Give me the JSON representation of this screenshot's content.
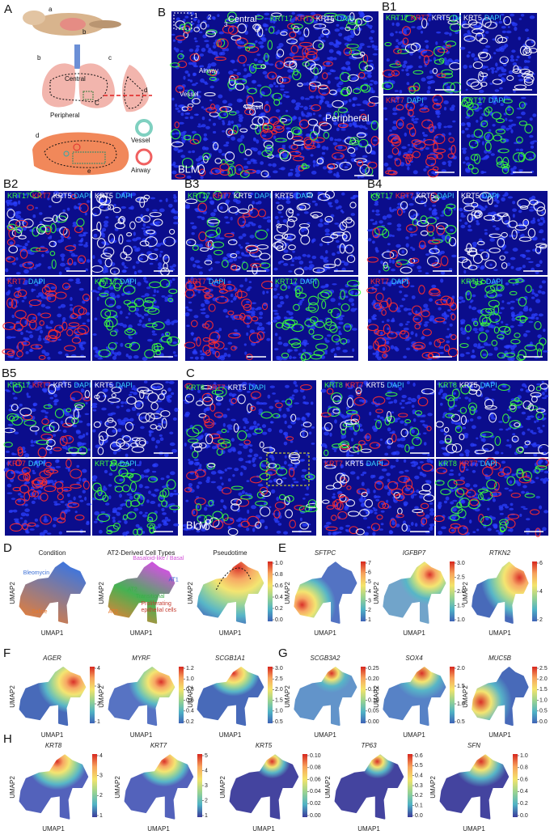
{
  "stain_colors": {
    "KRT17": "#3cff3c",
    "KRT7": "#ff2e2e",
    "KRT5": "#ffffff",
    "DAPI": "#38d3ff",
    "KRT8": "#3cff3c"
  },
  "panel_A": {
    "label": "A",
    "labels": [
      "a",
      "b",
      "b",
      "c",
      "C",
      "d",
      "d",
      "e",
      "Central",
      "Peripheral",
      "Vessel",
      "Airway"
    ]
  },
  "panel_B": {
    "label": "B",
    "stains": [
      "KRT17",
      "KRT7",
      "KRT5",
      "DAPI"
    ],
    "labels": [
      "Central",
      "Airway",
      "Vessel",
      "Vessel",
      "Peripheral",
      "BLM",
      "1",
      "2",
      "3"
    ]
  },
  "panel_B1": {
    "label": "B1",
    "images": [
      [
        "KRT17",
        "KRT7",
        "KRT5",
        "DAPI"
      ],
      [
        "KRT5",
        "DAPI"
      ],
      [
        "KRT7",
        "DAPI"
      ],
      [
        "KRT17",
        "DAPI"
      ]
    ]
  },
  "panel_B2": {
    "label": "B2",
    "images": [
      [
        "KRT17",
        "KRT7",
        "KRT5",
        "DAPI"
      ],
      [
        "KRT5",
        "DAPI"
      ],
      [
        "KRT7",
        "DAPI"
      ],
      [
        "KRT17",
        "DAPI"
      ]
    ]
  },
  "panel_B3": {
    "label": "B3",
    "images": [
      [
        "KRT17",
        "KRT7",
        "KRT5",
        "DAPI"
      ],
      [
        "KRT5",
        "DAPI"
      ],
      [
        "KRT7",
        "DAPI"
      ],
      [
        "KRT17",
        "DAPI"
      ]
    ]
  },
  "panel_B4": {
    "label": "B4",
    "images": [
      [
        "KRT17",
        "KRT7",
        "KRT5",
        "DAPI"
      ],
      [
        "KRT5",
        "DAPI"
      ],
      [
        "KRT7",
        "DAPI"
      ],
      [
        "KRT17",
        "DAPI"
      ]
    ]
  },
  "panel_B5": {
    "label": "B5",
    "images": [
      [
        "KRT17",
        "KRT7",
        "KRT5",
        "DAPI"
      ],
      [
        "KRT5",
        "DAPI"
      ],
      [
        "KRT7",
        "DAPI"
      ],
      [
        "KRT17",
        "DAPI"
      ]
    ]
  },
  "panel_C": {
    "label": "C",
    "stains": [
      "KRT8",
      "KRT7",
      "KRT5",
      "DAPI"
    ],
    "labels": [
      "BLM"
    ],
    "images": [
      [
        "KRT8",
        "KRT7",
        "KRT5",
        "DAPI"
      ],
      [
        "KRT8",
        "KRT5",
        "DAPI"
      ],
      [
        "KRT7",
        "KRT5",
        "DAPI"
      ],
      [
        "KRT8",
        "KRT7",
        "DAPI"
      ]
    ]
  },
  "umap_panels": [
    {
      "label": "D",
      "plots": [
        {
          "title": "Condition",
          "italic": false,
          "xlabel": "UMAP1",
          "ylabel": "UMAP2",
          "annotations": [
            {
              "text": "Bleomycin",
              "color": "#3b6fd6"
            },
            {
              "text": "Saline",
              "color": "#e8792b"
            }
          ]
        },
        {
          "title": "AT2-Derived Cell Types",
          "italic": false,
          "xlabel": "UMAP1",
          "ylabel": "UMAP2",
          "annotations": [
            {
              "text": "Basaloid-like / Basal",
              "color": "#d24fd8"
            },
            {
              "text": "AT1",
              "color": "#2f66d0"
            },
            {
              "text": "AT2",
              "color": "#3cae4a"
            },
            {
              "text": "Transitional",
              "color": "#3cae4a"
            },
            {
              "text": "Proliferating",
              "color": "#c43a2e"
            },
            {
              "text": "epithelial cells",
              "color": "#c43a2e"
            },
            {
              "text": "AT2",
              "color": "#e8792b"
            }
          ]
        },
        {
          "title": "Pseudotime",
          "italic": false,
          "xlabel": "UMAP1",
          "ylabel": "UMAP2",
          "colorbar": [
            "0.0",
            "0.2",
            "0.4",
            "0.6",
            "0.8",
            "1.0"
          ]
        }
      ]
    },
    {
      "label": "E",
      "plots": [
        {
          "title": "SFTPC",
          "italic": true,
          "xlabel": "UMAP1",
          "ylabel": "UMAP2",
          "colorbar": [
            "1",
            "2",
            "3",
            "4",
            "5",
            "6",
            "7"
          ]
        },
        {
          "title": "IGFBP7",
          "italic": true,
          "xlabel": "UMAP1",
          "ylabel": "UMAP2",
          "colorbar": [
            "1.0",
            "1.5",
            "2.0",
            "2.5",
            "3.0"
          ]
        },
        {
          "title": "RTKN2",
          "italic": true,
          "xlabel": "UMAP1",
          "ylabel": "UMAP2",
          "colorbar": [
            "2",
            "4",
            "6"
          ]
        }
      ]
    },
    {
      "label": "F",
      "plots": [
        {
          "title": "AGER",
          "italic": true,
          "xlabel": "UMAP1",
          "ylabel": "UMAP2",
          "colorbar": [
            "1",
            "2",
            "3",
            "4"
          ]
        },
        {
          "title": "MYRF",
          "italic": true,
          "xlabel": "UMAP1",
          "ylabel": "UMAP2",
          "colorbar": [
            "0.2",
            "0.4",
            "0.6",
            "0.8",
            "1.0",
            "1.2"
          ]
        },
        {
          "title": "SCGB1A1",
          "italic": true,
          "xlabel": "UMAP1",
          "ylabel": "UMAP2",
          "colorbar": [
            "0.5",
            "1.0",
            "1.5",
            "2.0",
            "2.5",
            "3.0"
          ]
        }
      ]
    },
    {
      "label": "G",
      "plots": [
        {
          "title": "SCGB3A2",
          "italic": true,
          "xlabel": "UMAP1",
          "ylabel": "UMAP2",
          "colorbar": [
            "0.00",
            "0.05",
            "0.10",
            "0.15",
            "0.20",
            "0.25"
          ]
        },
        {
          "title": "SOX4",
          "italic": true,
          "xlabel": "UMAP1",
          "ylabel": "UMAP2",
          "colorbar": [
            "0.5",
            "1.0",
            "1.5",
            "2.0"
          ]
        },
        {
          "title": "MUC5B",
          "italic": true,
          "xlabel": "UMAP1",
          "ylabel": "UMAP2",
          "colorbar": [
            "0.0",
            "0.5",
            "1.0",
            "1.5",
            "2.0",
            "2.5"
          ]
        }
      ]
    },
    {
      "label": "H",
      "plots": [
        {
          "title": "KRT8",
          "italic": true,
          "xlabel": "UMAP1",
          "ylabel": "UMAP2",
          "colorbar": [
            "1",
            "2",
            "3",
            "4"
          ]
        },
        {
          "title": "KRT7",
          "italic": true,
          "xlabel": "UMAP1",
          "ylabel": "UMAP2",
          "colorbar": [
            "1",
            "2",
            "3",
            "4",
            "5"
          ]
        },
        {
          "title": "KRT5",
          "italic": true,
          "xlabel": "UMAP1",
          "ylabel": "UMAP2",
          "colorbar": [
            "0.00",
            "0.02",
            "0.04",
            "0.06",
            "0.08",
            "0.10"
          ]
        },
        {
          "title": "TP63",
          "italic": true,
          "xlabel": "UMAP1",
          "ylabel": "UMAP2",
          "colorbar": [
            "0.0",
            "0.1",
            "0.2",
            "0.3",
            "0.4",
            "0.5",
            "0.6"
          ]
        },
        {
          "title": "SFN",
          "italic": true,
          "xlabel": "UMAP1",
          "ylabel": "UMAP2",
          "colorbar": [
            "0.0",
            "0.2",
            "0.4",
            "0.6",
            "0.8",
            "1.0"
          ]
        }
      ]
    }
  ]
}
